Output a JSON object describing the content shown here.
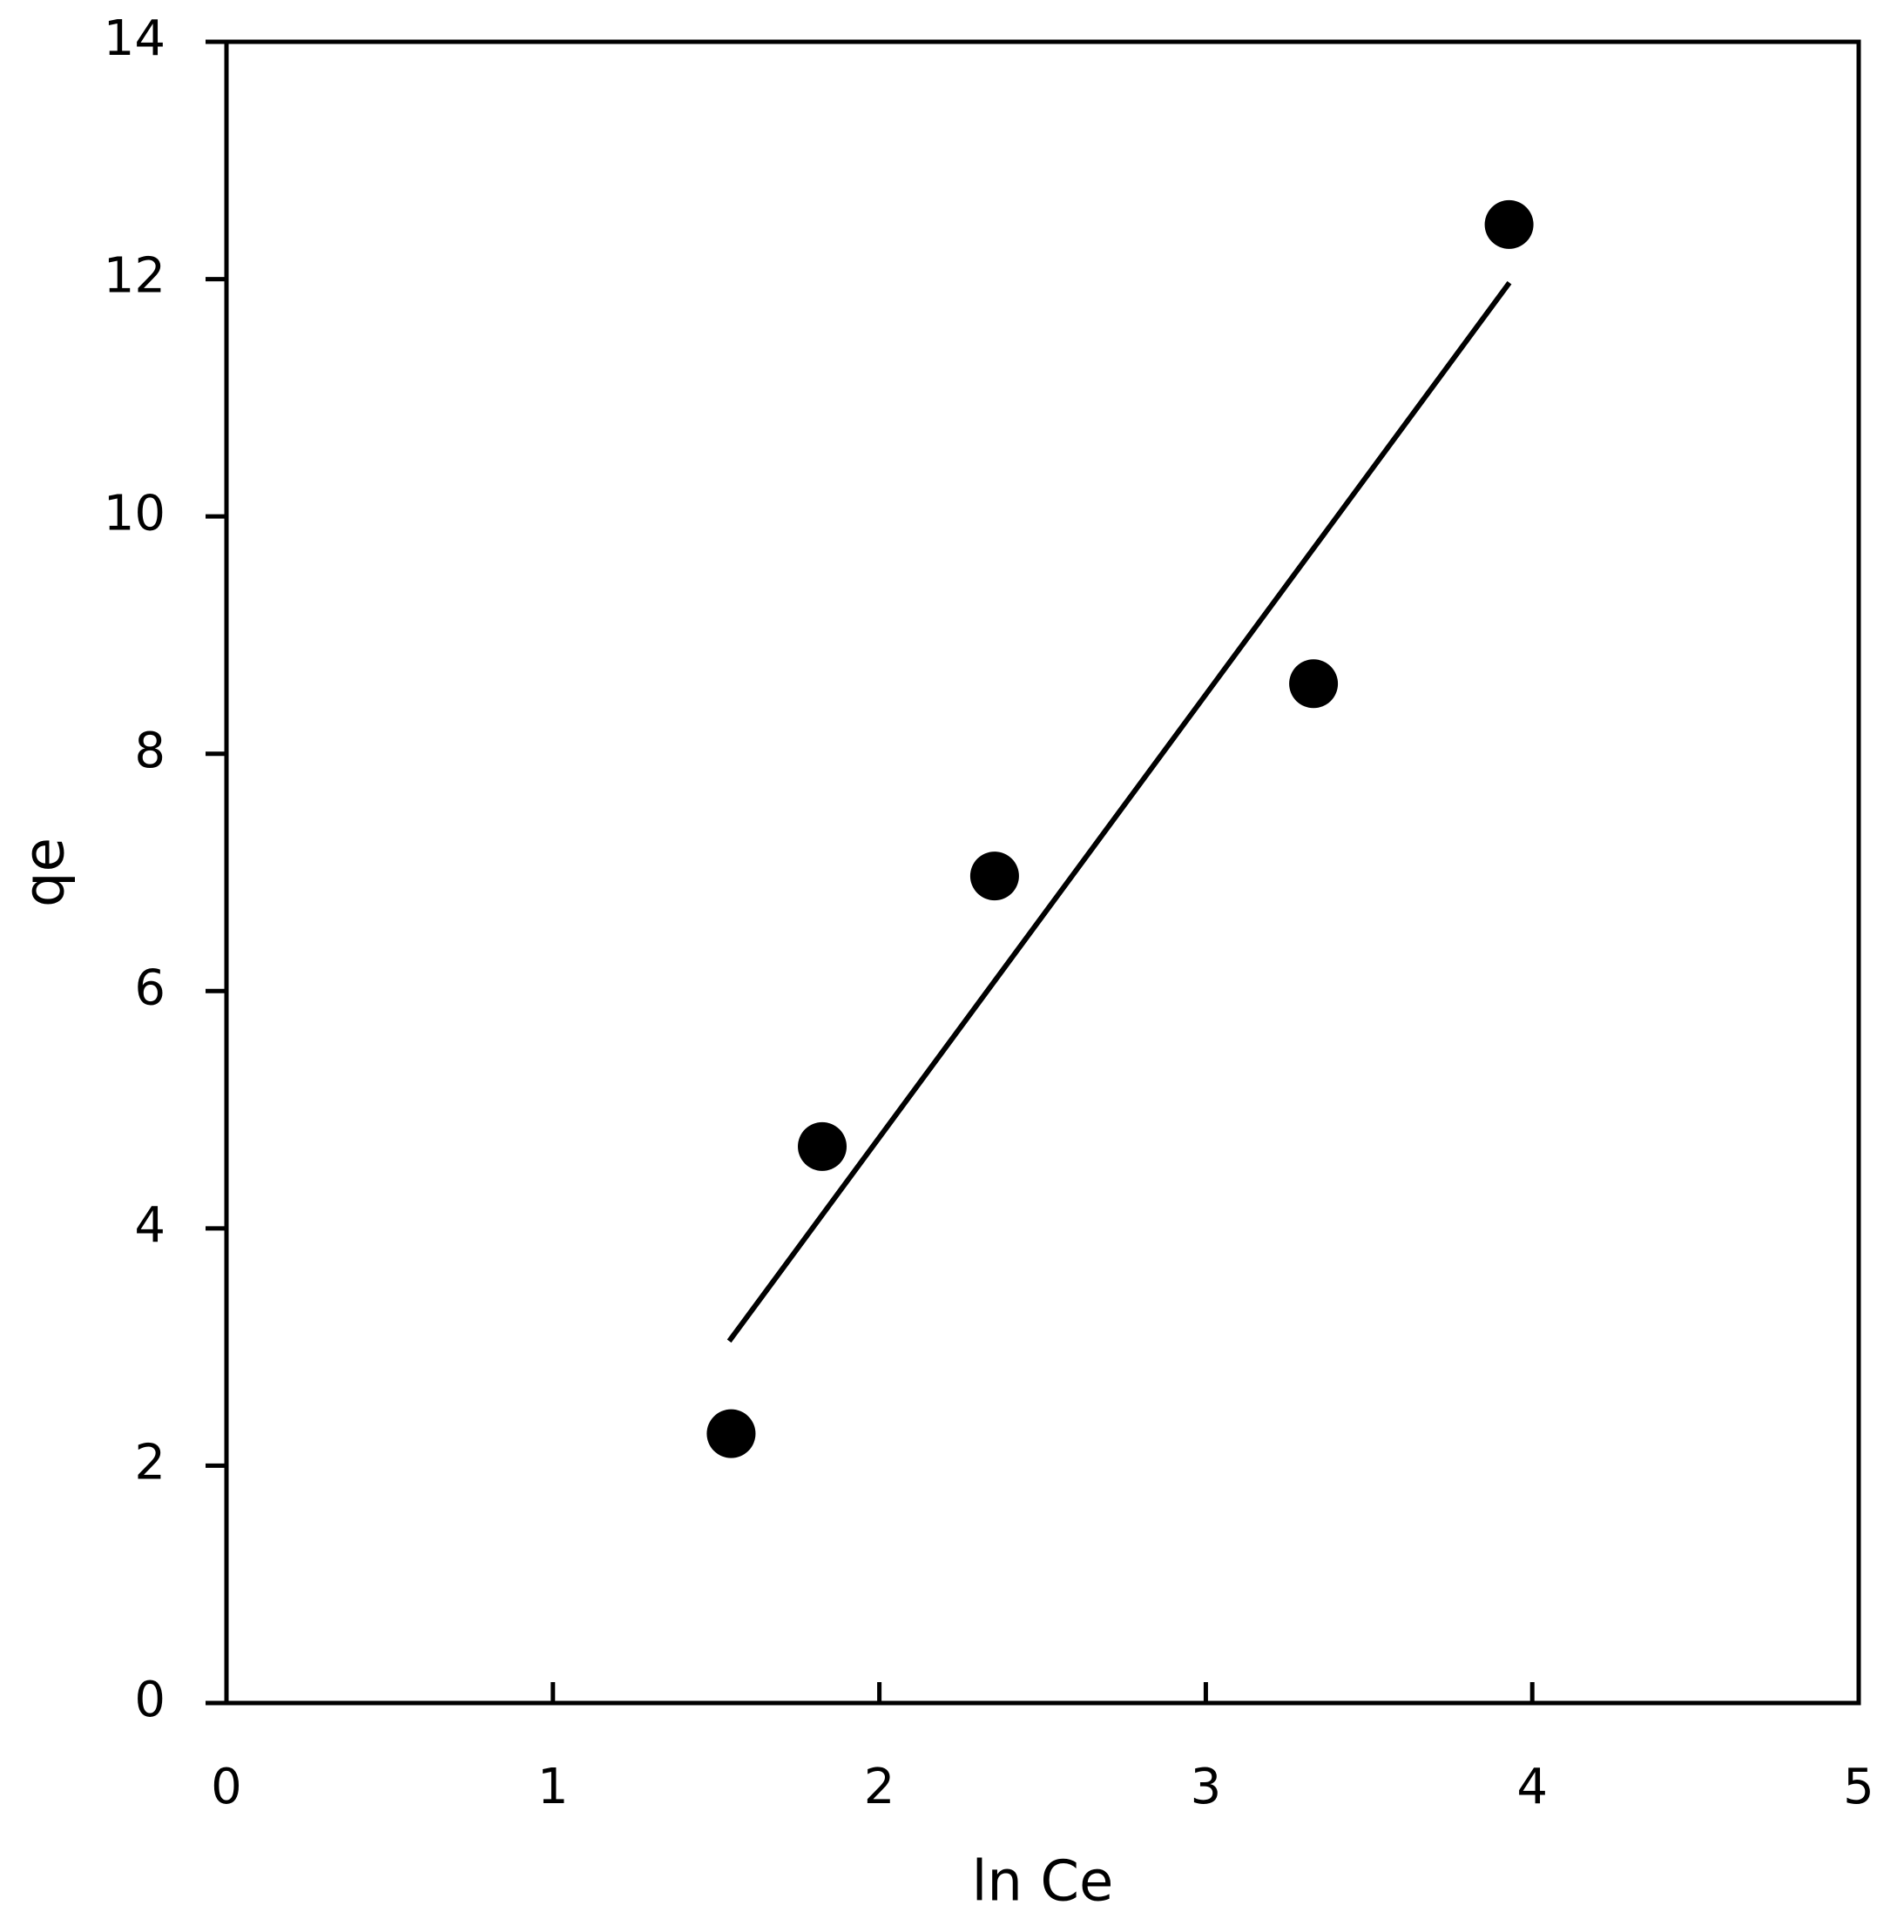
{
  "chart_data": {
    "type": "scatter",
    "x_label": "ln Ce",
    "y_label": "qe",
    "series": [
      {
        "color": "#000000",
        "x": [
          1.546,
          1.825,
          2.353,
          3.33,
          3.929
        ],
        "values": [
          2.27,
          4.69,
          6.97,
          8.59,
          12.46
        ]
      }
    ],
    "trendline": {
      "color": "#000000",
      "x": [
        1.54,
        3.93
      ],
      "values": [
        3.05,
        11.97
      ]
    },
    "xlim": [
      0,
      5
    ],
    "xticks": [
      0,
      1,
      2,
      3,
      4,
      5
    ],
    "ylim": [
      0,
      14
    ],
    "yticks": [
      0,
      2,
      4,
      6,
      8,
      10,
      12,
      14
    ],
    "grid": false
  }
}
